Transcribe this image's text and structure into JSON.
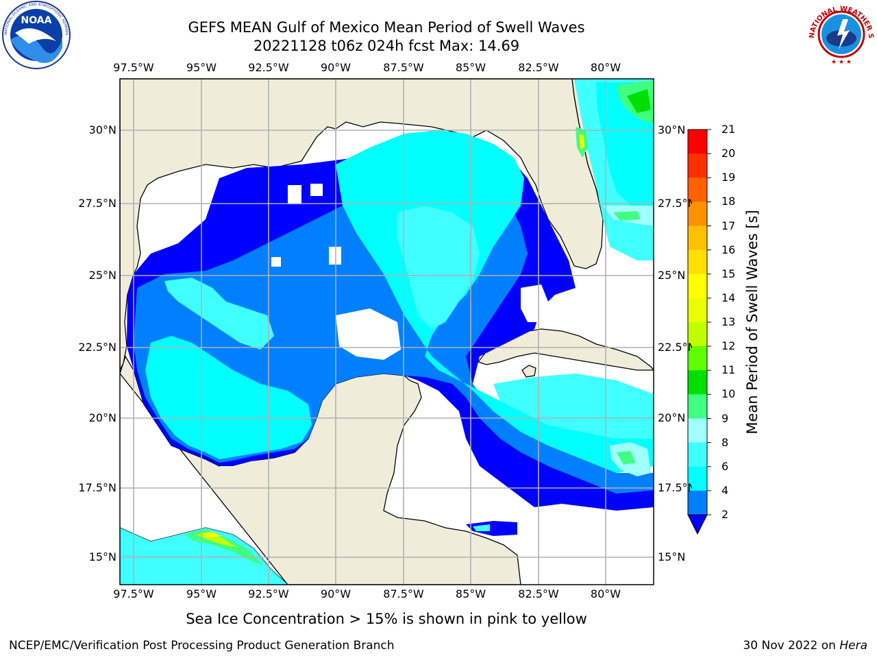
{
  "title_line1": "GEFS MEAN Gulf of Mexico Mean Period of Swell Waves",
  "title_line2": "20221128 t06z 024h fcst   Max: 14.69",
  "lon_labels": [
    "97.5°W",
    "95°W",
    "92.5°W",
    "90°W",
    "87.5°W",
    "85°W",
    "82.5°W",
    "80°W"
  ],
  "lat_labels_left": [
    "30°N",
    "27.5°N",
    "25°N",
    "22.5°N",
    "20°N",
    "17.5°N",
    "15°N"
  ],
  "lat_labels_right": [
    "30°N",
    "27.5°N",
    "25°N",
    "22.5°N",
    "20°N",
    "17.5°N",
    "15°N"
  ],
  "colorbar": {
    "label": "Mean Period of Swell Waves [s]",
    "ticks": [
      "2",
      "4",
      "6",
      "8",
      "9",
      "10",
      "11",
      "12",
      "13",
      "14",
      "15",
      "16",
      "17",
      "18",
      "19",
      "20",
      "21"
    ],
    "colors": [
      "#0000ff",
      "#0080ff",
      "#00ffff",
      "#40ffff",
      "#a0ffff",
      "#40ff80",
      "#00e000",
      "#60ff00",
      "#c0ff00",
      "#e8ff00",
      "#ffff00",
      "#ffe000",
      "#ffc000",
      "#ff9000",
      "#ff6000",
      "#ff3000",
      "#ff0000"
    ]
  },
  "ice_note": "Sea Ice Concentration > 15% is shown in pink to yellow",
  "credit": "NCEP/EMC/Verification Post Processing Product Generation Branch",
  "date": "30 Nov 2022 on",
  "host": "Hera",
  "noaa_logo": {
    "text": "NOAA",
    "ring_text": "NATIONAL OCEANIC AND ATMOSPHERIC ADMINISTRATION · U.S. DEPARTMENT OF COMMERCE"
  },
  "nws_logo": {
    "ring_text": "NATIONAL WEATHER SERVICE"
  }
}
